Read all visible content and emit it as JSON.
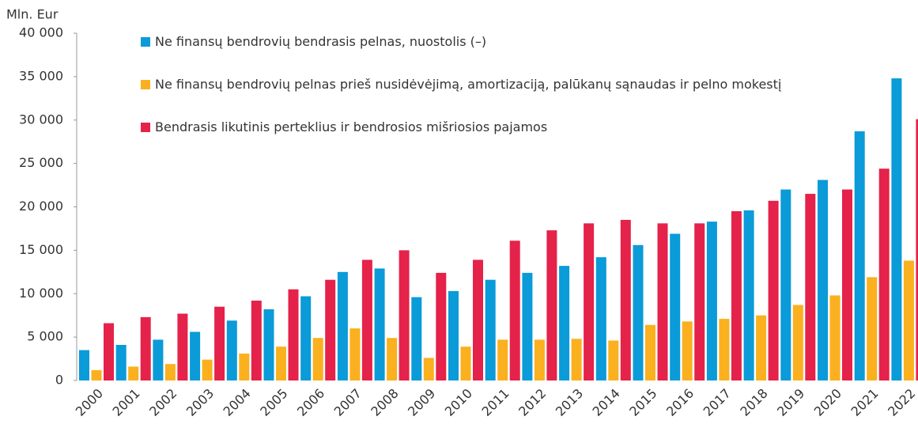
{
  "chart_data": {
    "type": "bar",
    "y_axis_label": "Mln. Eur",
    "categories": [
      "2000",
      "2001",
      "2002",
      "2003",
      "2004",
      "2005",
      "2006",
      "2007",
      "2008",
      "2009",
      "2010",
      "2011",
      "2012",
      "2013",
      "2014",
      "2015",
      "2016",
      "2017",
      "2018",
      "2019",
      "2020",
      "2021",
      "2022"
    ],
    "series": [
      {
        "name": "Ne finansų bendrovių bendrasis pelnas, nuostolis (–)",
        "color": "#0a9bd8",
        "values": [
          3500,
          4100,
          4700,
          5600,
          6900,
          8200,
          9700,
          12500,
          12900,
          9600,
          10300,
          11600,
          12400,
          13200,
          14200,
          15600,
          16900,
          18300,
          19600,
          22000,
          23100,
          28700,
          34800
        ]
      },
      {
        "name": "Ne finansų bendrovių pelnas prieš nusidėvėjimą, amortizaciją, palūkanų sąnaudas ir pelno mokestį",
        "color": "#fbb01f",
        "values": [
          1200,
          1600,
          1900,
          2400,
          3100,
          3900,
          4900,
          6000,
          4900,
          2600,
          3900,
          4700,
          4700,
          4800,
          4600,
          6400,
          6800,
          7100,
          7500,
          8700,
          9800,
          11900,
          13800
        ]
      },
      {
        "name": "Bendrasis likutinis perteklius ir bendrosios mišriosios pajamos",
        "color": "#e5224a",
        "values": [
          6600,
          7300,
          7700,
          8500,
          9200,
          10500,
          11600,
          13900,
          15000,
          12400,
          13900,
          16100,
          17300,
          18100,
          18500,
          18100,
          18100,
          19500,
          20700,
          21500,
          22000,
          24400,
          30100
        ]
      }
    ],
    "ylim": [
      0,
      40000
    ],
    "yticks": [
      0,
      {
        "value": 5000,
        "label": "5 000"
      },
      {
        "value": 10000,
        "label": "10 000"
      },
      {
        "value": 15000,
        "label": "15 000"
      },
      {
        "value": 20000,
        "label": "20 000"
      },
      {
        "value": 25000,
        "label": "25 000"
      },
      {
        "value": 30000,
        "label": "30 000"
      },
      {
        "value": 35000,
        "label": "35 000"
      },
      {
        "value": 40000,
        "label": "40 000"
      }
    ]
  }
}
